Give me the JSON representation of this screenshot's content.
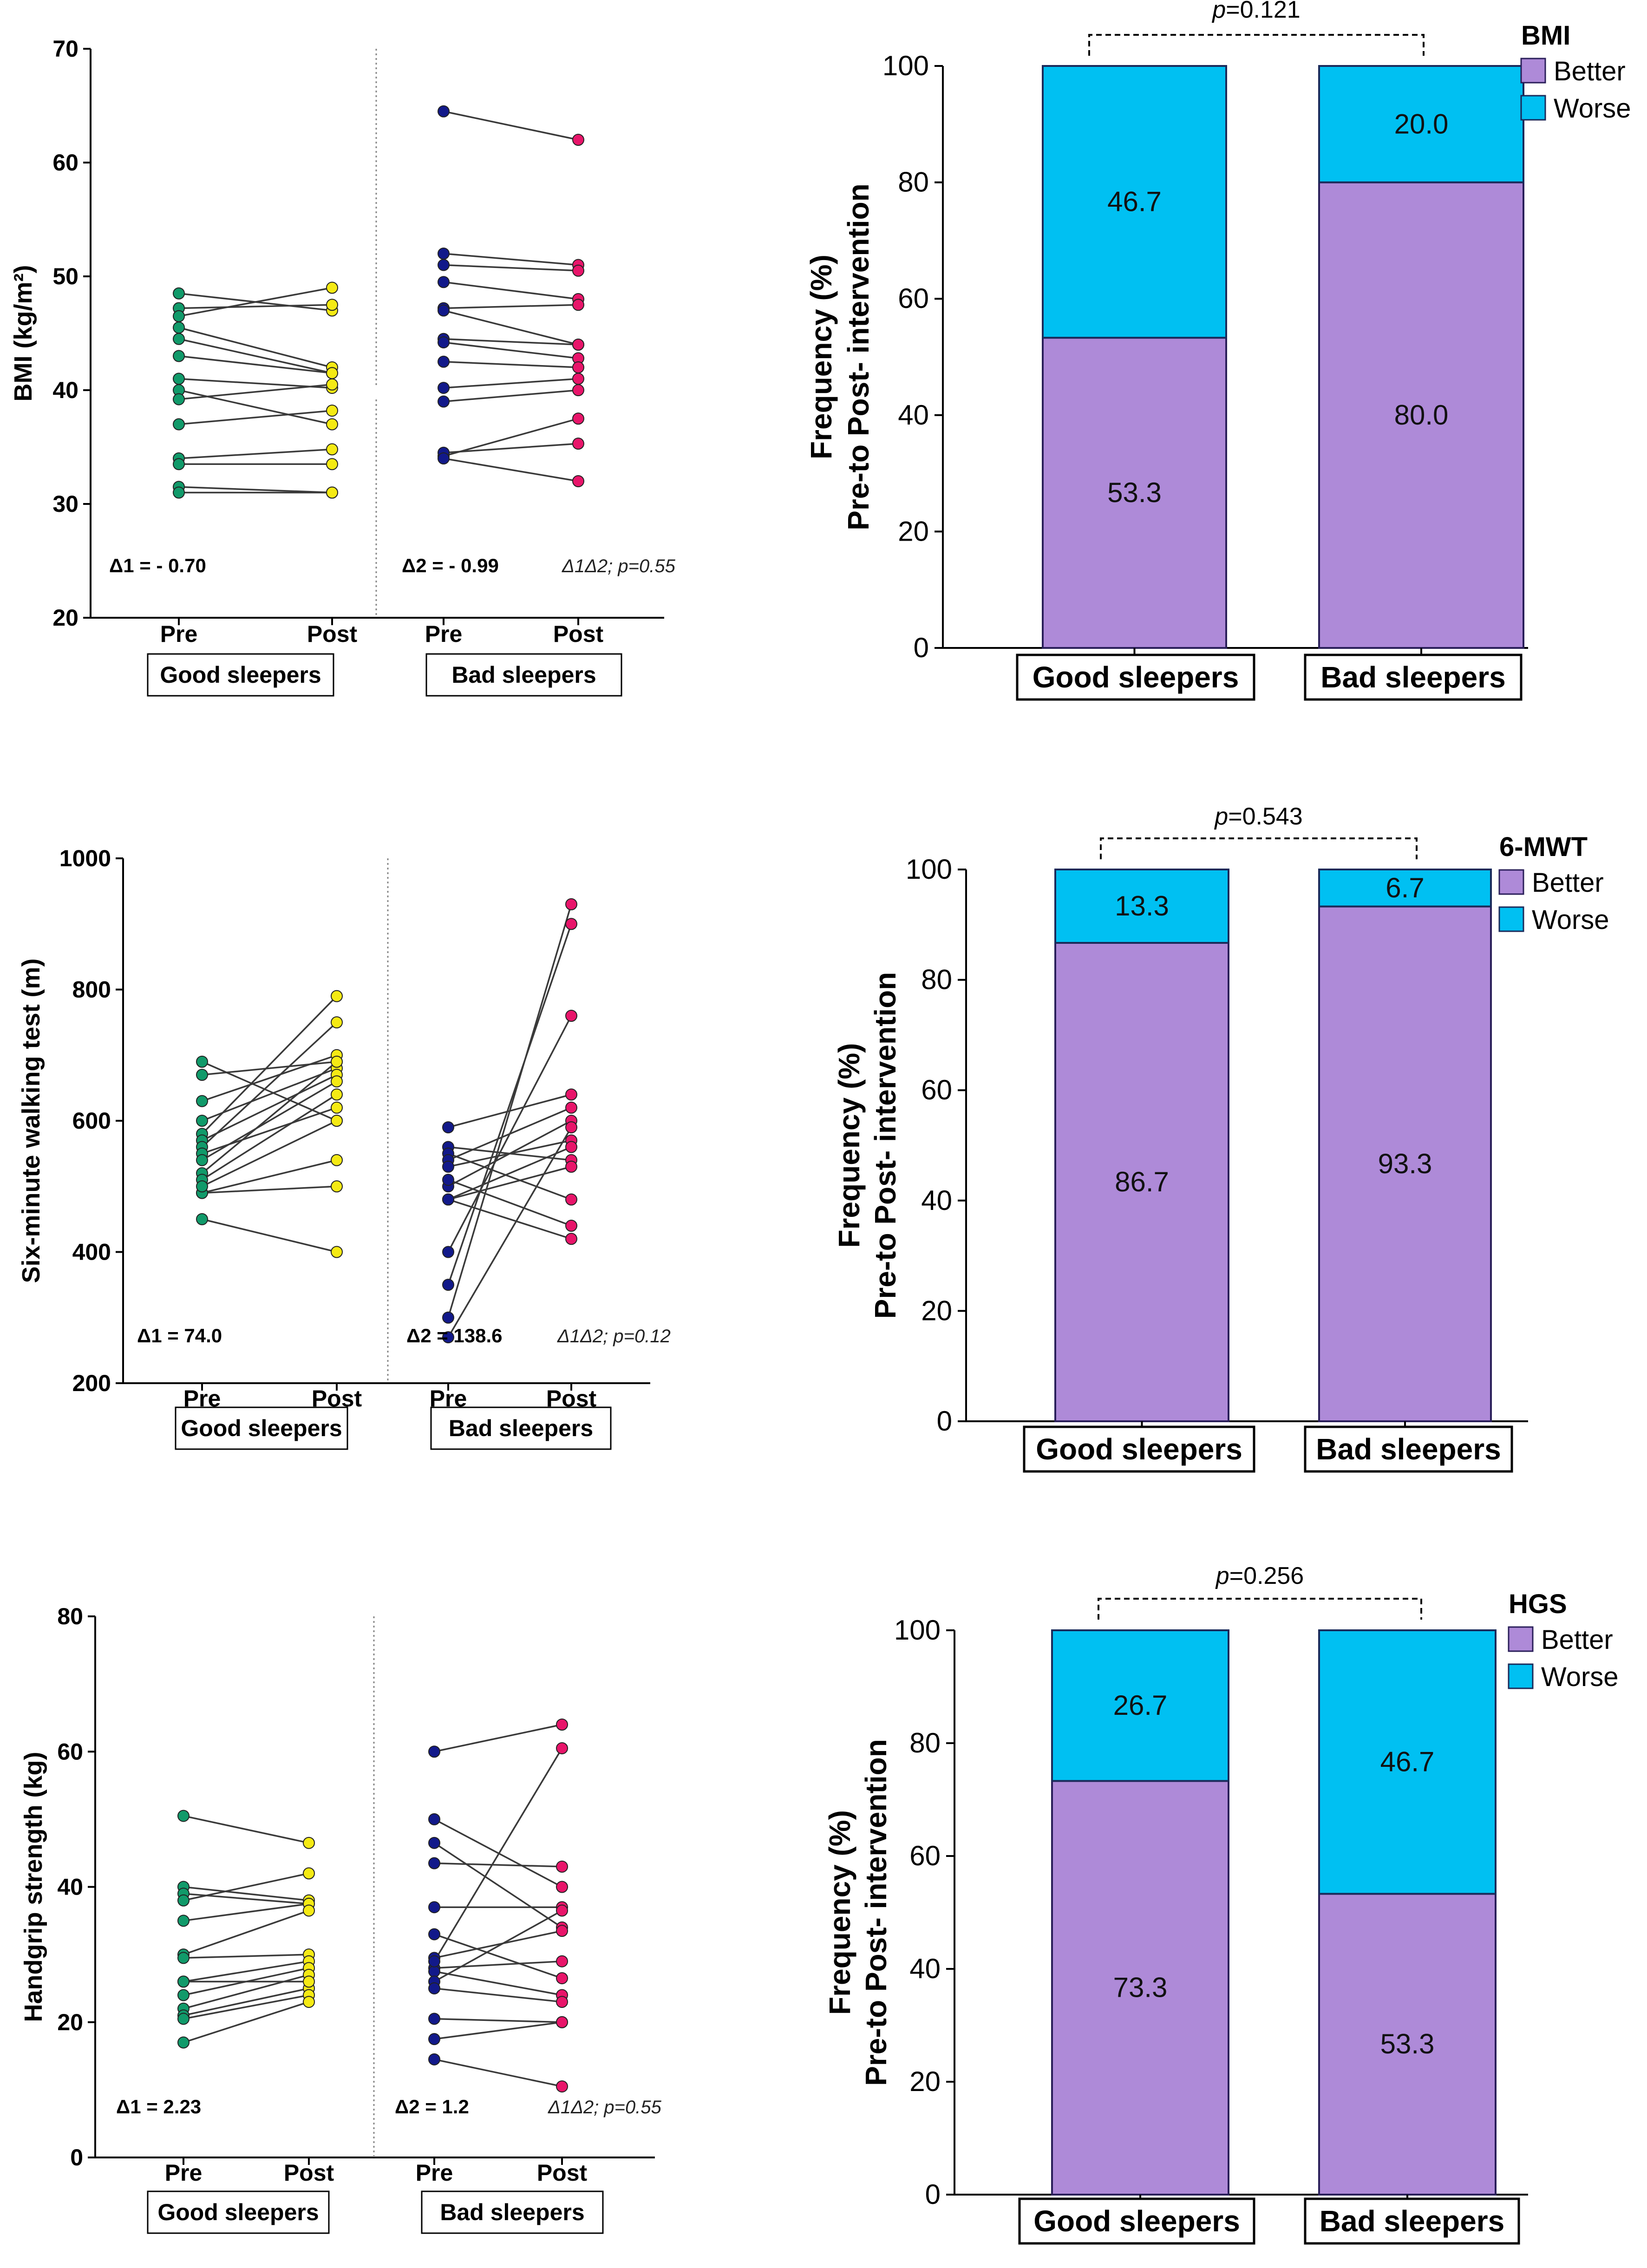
{
  "chart_data": [
    {
      "type": "scatter",
      "variant": "paired-dot",
      "ylabel": "BMI (kg/m²)",
      "ylim": [
        20,
        70
      ],
      "yticks": [
        "20",
        "30",
        "40",
        "50",
        "60",
        "70"
      ],
      "categories": [
        "Pre",
        "Post",
        "Pre",
        "Post"
      ],
      "groups": [
        "Good sleepers",
        "Bad sleepers"
      ],
      "colors": {
        "good_pre": "#119a6a",
        "good_post": "#f5ea14",
        "bad_pre": "#12198a",
        "bad_post": "#e8156a"
      },
      "series": [
        {
          "name": "Good sleepers",
          "pairs": [
            [
              48.5,
              47.0
            ],
            [
              47.2,
              47.5
            ],
            [
              46.5,
              49.0
            ],
            [
              45.5,
              42.0
            ],
            [
              44.5,
              41.5
            ],
            [
              43.0,
              41.5
            ],
            [
              41.0,
              40.2
            ],
            [
              40.0,
              37.0
            ],
            [
              39.2,
              40.5
            ],
            [
              37.0,
              38.2
            ],
            [
              34.0,
              34.8
            ],
            [
              33.5,
              33.5
            ],
            [
              31.5,
              31.0
            ],
            [
              31.0,
              31.0
            ]
          ]
        },
        {
          "name": "Bad sleepers",
          "pairs": [
            [
              64.5,
              62.0
            ],
            [
              52.0,
              51.0
            ],
            [
              51.0,
              50.5
            ],
            [
              49.5,
              48.0
            ],
            [
              47.2,
              47.5
            ],
            [
              47.0,
              44.0
            ],
            [
              44.5,
              44.0
            ],
            [
              44.2,
              42.8
            ],
            [
              42.5,
              42.0
            ],
            [
              40.2,
              41.0
            ],
            [
              39.0,
              40.0
            ],
            [
              34.2,
              37.5
            ],
            [
              34.5,
              35.3
            ],
            [
              34.0,
              32.0
            ]
          ]
        }
      ],
      "annotations": {
        "delta1": "Δ1 = - 0.70",
        "delta2": "Δ2 = - 0.99",
        "comparison": "Δ1Δ2; p=0.55"
      }
    },
    {
      "type": "bar",
      "stacked": true,
      "legend_title": "BMI",
      "ylabel": [
        "Frequency (%)",
        "Pre-to Post- intervention"
      ],
      "ylim": [
        0,
        100
      ],
      "yticks": [
        "0",
        "20",
        "40",
        "60",
        "80",
        "100"
      ],
      "categories": [
        "Good sleepers",
        "Bad sleepers"
      ],
      "series": [
        {
          "name": "Better",
          "values": [
            53.3,
            80.0
          ],
          "labels": [
            "53.3",
            "80.0"
          ]
        },
        {
          "name": "Worse",
          "values": [
            46.7,
            20.0
          ],
          "labels": [
            "46.7",
            "20.0"
          ]
        }
      ],
      "p_label": "p",
      "p_value": "=0.121",
      "colors": {
        "better": "#ae8ad8",
        "worse": "#00c0f2"
      }
    },
    {
      "type": "scatter",
      "variant": "paired-dot",
      "ylabel": "Six-minute walking test (m)",
      "ylim": [
        200,
        1000
      ],
      "yticks": [
        "200",
        "400",
        "600",
        "800",
        "1000"
      ],
      "categories": [
        "Pre",
        "Post",
        "Pre",
        "Post"
      ],
      "groups": [
        "Good sleepers",
        "Bad sleepers"
      ],
      "colors": {
        "good_pre": "#119a6a",
        "good_post": "#f5ea14",
        "bad_pre": "#12198a",
        "bad_post": "#e8156a"
      },
      "series": [
        {
          "name": "Good sleepers",
          "pairs": [
            [
              690,
              600
            ],
            [
              670,
              690
            ],
            [
              630,
              700
            ],
            [
              600,
              680
            ],
            [
              580,
              790
            ],
            [
              570,
              670
            ],
            [
              560,
              750
            ],
            [
              550,
              620
            ],
            [
              540,
              660
            ],
            [
              520,
              690
            ],
            [
              510,
              640
            ],
            [
              490,
              500
            ],
            [
              490,
              540
            ],
            [
              450,
              400
            ],
            [
              500,
              600
            ]
          ]
        },
        {
          "name": "Bad sleepers",
          "pairs": [
            [
              590,
              640
            ],
            [
              560,
              540
            ],
            [
              550,
              480
            ],
            [
              540,
              620
            ],
            [
              530,
              570
            ],
            [
              500,
              600
            ],
            [
              480,
              530
            ],
            [
              480,
              560
            ],
            [
              400,
              760
            ],
            [
              350,
              900
            ],
            [
              300,
              930
            ],
            [
              270,
              590
            ],
            [
              510,
              440
            ],
            [
              480,
              420
            ]
          ]
        }
      ],
      "annotations": {
        "delta1": "Δ1 = 74.0",
        "delta2": "Δ2 = 138.6",
        "comparison": "Δ1Δ2; p=0.12"
      }
    },
    {
      "type": "bar",
      "stacked": true,
      "legend_title": "6-MWT",
      "ylabel": [
        "Frequency (%)",
        "Pre-to Post- intervention"
      ],
      "ylim": [
        0,
        100
      ],
      "yticks": [
        "0",
        "20",
        "40",
        "60",
        "80",
        "100"
      ],
      "categories": [
        "Good sleepers",
        "Bad sleepers"
      ],
      "series": [
        {
          "name": "Better",
          "values": [
            86.7,
            93.3
          ],
          "labels": [
            "86.7",
            "93.3"
          ]
        },
        {
          "name": "Worse",
          "values": [
            13.3,
            6.7
          ],
          "labels": [
            "13.3",
            "6.7"
          ]
        }
      ],
      "p_label": "p",
      "p_value": "=0.543",
      "colors": {
        "better": "#ae8ad8",
        "worse": "#00c0f2"
      }
    },
    {
      "type": "scatter",
      "variant": "paired-dot",
      "ylabel": "Handgrip strength (kg)",
      "ylim": [
        0,
        80
      ],
      "yticks": [
        "0",
        "20",
        "40",
        "60",
        "80"
      ],
      "categories": [
        "Pre",
        "Post",
        "Pre",
        "Post"
      ],
      "groups": [
        "Good sleepers",
        "Bad sleepers"
      ],
      "colors": {
        "good_pre": "#119a6a",
        "good_post": "#f5ea14",
        "bad_pre": "#12198a",
        "bad_post": "#e8156a"
      },
      "series": [
        {
          "name": "Good sleepers",
          "pairs": [
            [
              50.5,
              46.5
            ],
            [
              40.0,
              38.0
            ],
            [
              39.0,
              37.5
            ],
            [
              38.0,
              42.0
            ],
            [
              35.0,
              37.5
            ],
            [
              30.0,
              36.5
            ],
            [
              29.5,
              30.0
            ],
            [
              26.0,
              29.0
            ],
            [
              24.0,
              28.0
            ],
            [
              22.0,
              27.0
            ],
            [
              21.0,
              25.0
            ],
            [
              20.5,
              24.0
            ],
            [
              17.0,
              23.0
            ],
            [
              26.0,
              26.0
            ]
          ]
        },
        {
          "name": "Bad sleepers",
          "pairs": [
            [
              60.0,
              64.0
            ],
            [
              50.0,
              40.0
            ],
            [
              46.5,
              34.0
            ],
            [
              43.5,
              43.0
            ],
            [
              37.0,
              37.0
            ],
            [
              33.0,
              26.5
            ],
            [
              29.5,
              33.5
            ],
            [
              28.0,
              29.0
            ],
            [
              27.5,
              24.0
            ],
            [
              26.0,
              36.5
            ],
            [
              25.0,
              23.0
            ],
            [
              20.5,
              20.0
            ],
            [
              17.5,
              20.0
            ],
            [
              14.5,
              10.5
            ],
            [
              29.0,
              60.5
            ]
          ]
        }
      ],
      "annotations": {
        "delta1": "Δ1 = 2.23",
        "delta2": "Δ2 = 1.2",
        "comparison": "Δ1Δ2; p=0.55"
      }
    },
    {
      "type": "bar",
      "stacked": true,
      "legend_title": "HGS",
      "ylabel": [
        "Frequency (%)",
        "Pre-to Post- intervention"
      ],
      "ylim": [
        0,
        100
      ],
      "yticks": [
        "0",
        "20",
        "40",
        "60",
        "80",
        "100"
      ],
      "categories": [
        "Good sleepers",
        "Bad sleepers"
      ],
      "series": [
        {
          "name": "Better",
          "values": [
            73.3,
            53.3
          ],
          "labels": [
            "73.3",
            "53.3"
          ]
        },
        {
          "name": "Worse",
          "values": [
            26.7,
            46.7
          ],
          "labels": [
            "26.7",
            "46.7"
          ]
        }
      ],
      "p_label": "p",
      "p_value": "=0.256",
      "colors": {
        "better": "#ae8ad8",
        "worse": "#00c0f2"
      }
    }
  ]
}
